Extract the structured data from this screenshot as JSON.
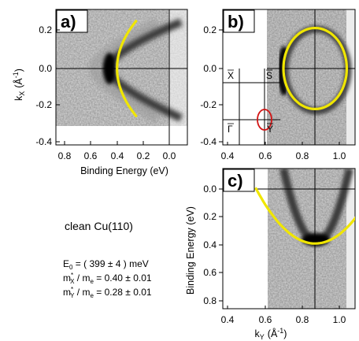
{
  "panels": {
    "a": {
      "label": "a)",
      "xlabel": "Binding Energy  (eV)",
      "ylabel_main": "k",
      "ylabel_sub": "X",
      "ylabel_unit_open": "(Å",
      "ylabel_unit_exp": "-1",
      "ylabel_unit_close": ")",
      "xticks": [
        "0.8",
        "0.6",
        "0.4",
        "0.2",
        "0.0"
      ],
      "yticks": [
        "0.2",
        "0.0",
        "-0.2",
        "-0.4"
      ]
    },
    "b": {
      "label": "b)",
      "xticks": [
        "0.4",
        "0.6",
        "0.8",
        "1.0"
      ],
      "yticks": [
        "0.2",
        "0.0",
        "-0.2",
        "-0.4"
      ],
      "bz_labels": {
        "x": "X",
        "s": "S",
        "gamma": "Γ",
        "y": "Y"
      }
    },
    "c": {
      "label": "c)",
      "xlabel_main": "k",
      "xlabel_sub": "Y",
      "xlabel_unit_open": "(Å",
      "xlabel_unit_exp": "-1",
      "xlabel_unit_close": ")",
      "ylabel": "Binding Energy  (eV)",
      "xticks": [
        "0.4",
        "0.6",
        "0.8",
        "1.0"
      ],
      "yticks": [
        "0.0",
        "0.2",
        "0.4",
        "0.6",
        "0.8"
      ]
    }
  },
  "annotations": {
    "sample": "clean Cu(110)",
    "line1_sym": "E",
    "line1_sub": "0",
    "line1_val": " = ( 399  ± 4 ) meV",
    "line2_sym": "m",
    "line2_sup": "*",
    "line2_sub": "X",
    "line2_mid": " / m",
    "line2_sub2": "e",
    "line2_val": " = 0.40 ± 0.01",
    "line3_sym": "m",
    "line3_sup": "*",
    "line3_sub": "Y",
    "line3_mid": " / m",
    "line3_sub2": "e",
    "line3_val": " = 0.28 ± 0.01"
  },
  "chart_data": [
    {
      "type": "heatmap",
      "panel": "a",
      "xlabel": "Binding Energy  (eV)",
      "ylabel": "kX (Å-1)",
      "xlim": [
        0.85,
        -0.14
      ],
      "ylim": [
        -0.42,
        0.33
      ],
      "fit_curve": {
        "form": "E = 0.399 - 2.4 k^2",
        "k_range": [
          -0.25,
          0.25
        ]
      },
      "colors": {
        "fit": "#f0e600",
        "data": "#000000"
      }
    },
    {
      "type": "heatmap",
      "panel": "b",
      "xlabel": "kY (Å-1)",
      "ylabel": "kX (Å-1)",
      "xlim": [
        0.35,
        1.1
      ],
      "ylim": [
        -0.42,
        0.33
      ],
      "fit_curve": {
        "form": "ellipse",
        "center": [
          0.87,
          0.0
        ],
        "radii": [
          0.17,
          0.21
        ]
      }
    },
    {
      "type": "heatmap",
      "panel": "c",
      "xlabel": "kY (Å-1)",
      "ylabel": "Binding Energy  (eV)",
      "xlim": [
        0.35,
        1.1
      ],
      "ylim": [
        0.83,
        -0.12
      ],
      "fit_curve": {
        "form": "E = 0.39 - 3.9 (kY - 0.87)^2",
        "k_range": [
          0.55,
          1.18
        ]
      }
    }
  ]
}
